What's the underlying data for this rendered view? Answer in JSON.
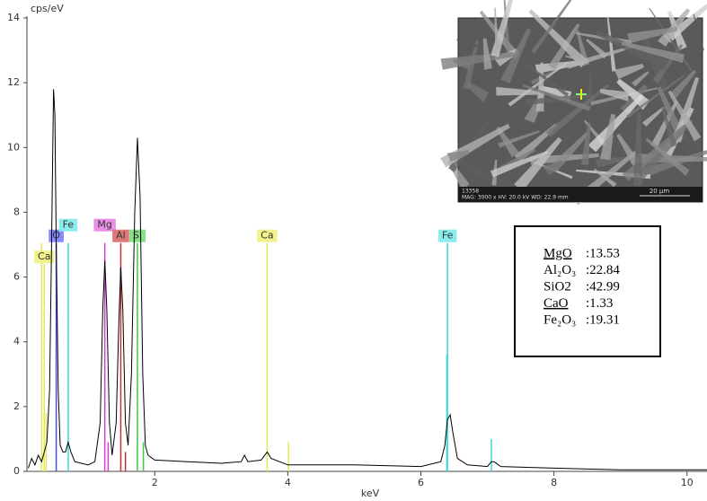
{
  "chart_data": {
    "type": "line",
    "y_label": "cps/eV",
    "x_label": "keV",
    "xlim": [
      0.08,
      10.3
    ],
    "ylim": [
      0,
      14
    ],
    "xticks": [
      2,
      4,
      6,
      8,
      10
    ],
    "yticks": [
      0,
      2,
      4,
      6,
      8,
      10,
      12,
      14
    ],
    "spectrum": {
      "color": "#000000",
      "x": [
        0.1,
        0.15,
        0.2,
        0.25,
        0.3,
        0.34,
        0.38,
        0.42,
        0.45,
        0.48,
        0.5,
        0.52,
        0.55,
        0.58,
        0.62,
        0.66,
        0.7,
        0.74,
        0.8,
        0.9,
        1.0,
        1.1,
        1.18,
        1.22,
        1.25,
        1.28,
        1.32,
        1.36,
        1.42,
        1.46,
        1.49,
        1.52,
        1.56,
        1.6,
        1.65,
        1.7,
        1.74,
        1.78,
        1.82,
        1.86,
        1.9,
        2.0,
        2.5,
        3.0,
        3.3,
        3.35,
        3.4,
        3.6,
        3.69,
        3.75,
        4.0,
        5.0,
        6.0,
        6.3,
        6.36,
        6.4,
        6.44,
        6.48,
        6.55,
        6.7,
        7.0,
        7.06,
        7.1,
        7.2,
        8.0,
        9.0,
        10.0,
        10.3
      ],
      "values": [
        0.1,
        0.4,
        0.2,
        0.5,
        0.3,
        0.6,
        0.9,
        2.5,
        7,
        11.8,
        11.0,
        7,
        2.5,
        0.8,
        0.6,
        0.6,
        0.9,
        0.6,
        0.3,
        0.25,
        0.2,
        0.3,
        1.5,
        5,
        6.5,
        5,
        1.5,
        0.5,
        1.5,
        4.5,
        6.3,
        5,
        1.5,
        0.8,
        3,
        8,
        10.3,
        8.5,
        3,
        0.8,
        0.5,
        0.35,
        0.3,
        0.25,
        0.3,
        0.5,
        0.3,
        0.35,
        0.6,
        0.4,
        0.2,
        0.2,
        0.15,
        0.3,
        0.8,
        1.6,
        1.75,
        1.2,
        0.4,
        0.2,
        0.15,
        0.3,
        0.3,
        0.15,
        0.1,
        0.05,
        0.05,
        0.05
      ]
    },
    "element_lines": [
      {
        "name": "Ca",
        "x": 0.34,
        "height": 6.4,
        "color": "#e6e65a",
        "label_color": "#f2f28c"
      },
      {
        "name": "O",
        "x": 0.52,
        "height": 7.05,
        "color": "#5050e0",
        "label_color": "#8a8aff"
      },
      {
        "name": "Fe",
        "x": 0.7,
        "height": 7.05,
        "color": "#40d8d8",
        "label_color": "#8aecec"
      },
      {
        "name": "Mg",
        "x": 1.25,
        "height": 7.05,
        "color": "#d040d0",
        "label_color": "#e890e8"
      },
      {
        "name": "Al",
        "x": 1.49,
        "height": 7.05,
        "color": "#c03030",
        "label_color": "#e07878"
      },
      {
        "name": "Si",
        "x": 1.74,
        "height": 7.05,
        "color": "#40c840",
        "label_color": "#88e088"
      },
      {
        "name": "Ca",
        "x": 3.69,
        "height": 7.05,
        "color": "#e6e65a",
        "label_color": "#f2f28c"
      },
      {
        "name": "Fe",
        "x": 6.4,
        "height": 7.05,
        "color": "#40d8d8",
        "label_color": "#8aecec"
      }
    ],
    "minor_lines": [
      {
        "x": 0.3,
        "height": 7.05,
        "color": "#e6e65a"
      },
      {
        "x": 0.37,
        "height": 1.8,
        "color": "#e6e65a"
      },
      {
        "x": 1.3,
        "height": 0.9,
        "color": "#d040d0"
      },
      {
        "x": 1.56,
        "height": 0.6,
        "color": "#c03030"
      },
      {
        "x": 1.83,
        "height": 0.9,
        "color": "#40c840"
      },
      {
        "x": 4.01,
        "height": 0.9,
        "color": "#e6e65a"
      },
      {
        "x": 6.39,
        "height": 3.6,
        "color": "#40d8d8"
      },
      {
        "x": 7.06,
        "height": 1.0,
        "color": "#40d8d8"
      }
    ],
    "micrograph": {
      "id": "13358",
      "info": "MAG: 3000 x   HV: 20.0 kV   WD: 22.9 mm",
      "scale": "20 µm"
    },
    "composition": [
      {
        "oxide": "MgO",
        "value": ":13.53"
      },
      {
        "oxide": "Al₂O₃",
        "value": ":22.84"
      },
      {
        "oxide": "SiO2",
        "value": ":42.99"
      },
      {
        "oxide": "CaO",
        "value": ":1.33"
      },
      {
        "oxide": "Fe₂O₃",
        "value": ":19.31"
      }
    ]
  }
}
